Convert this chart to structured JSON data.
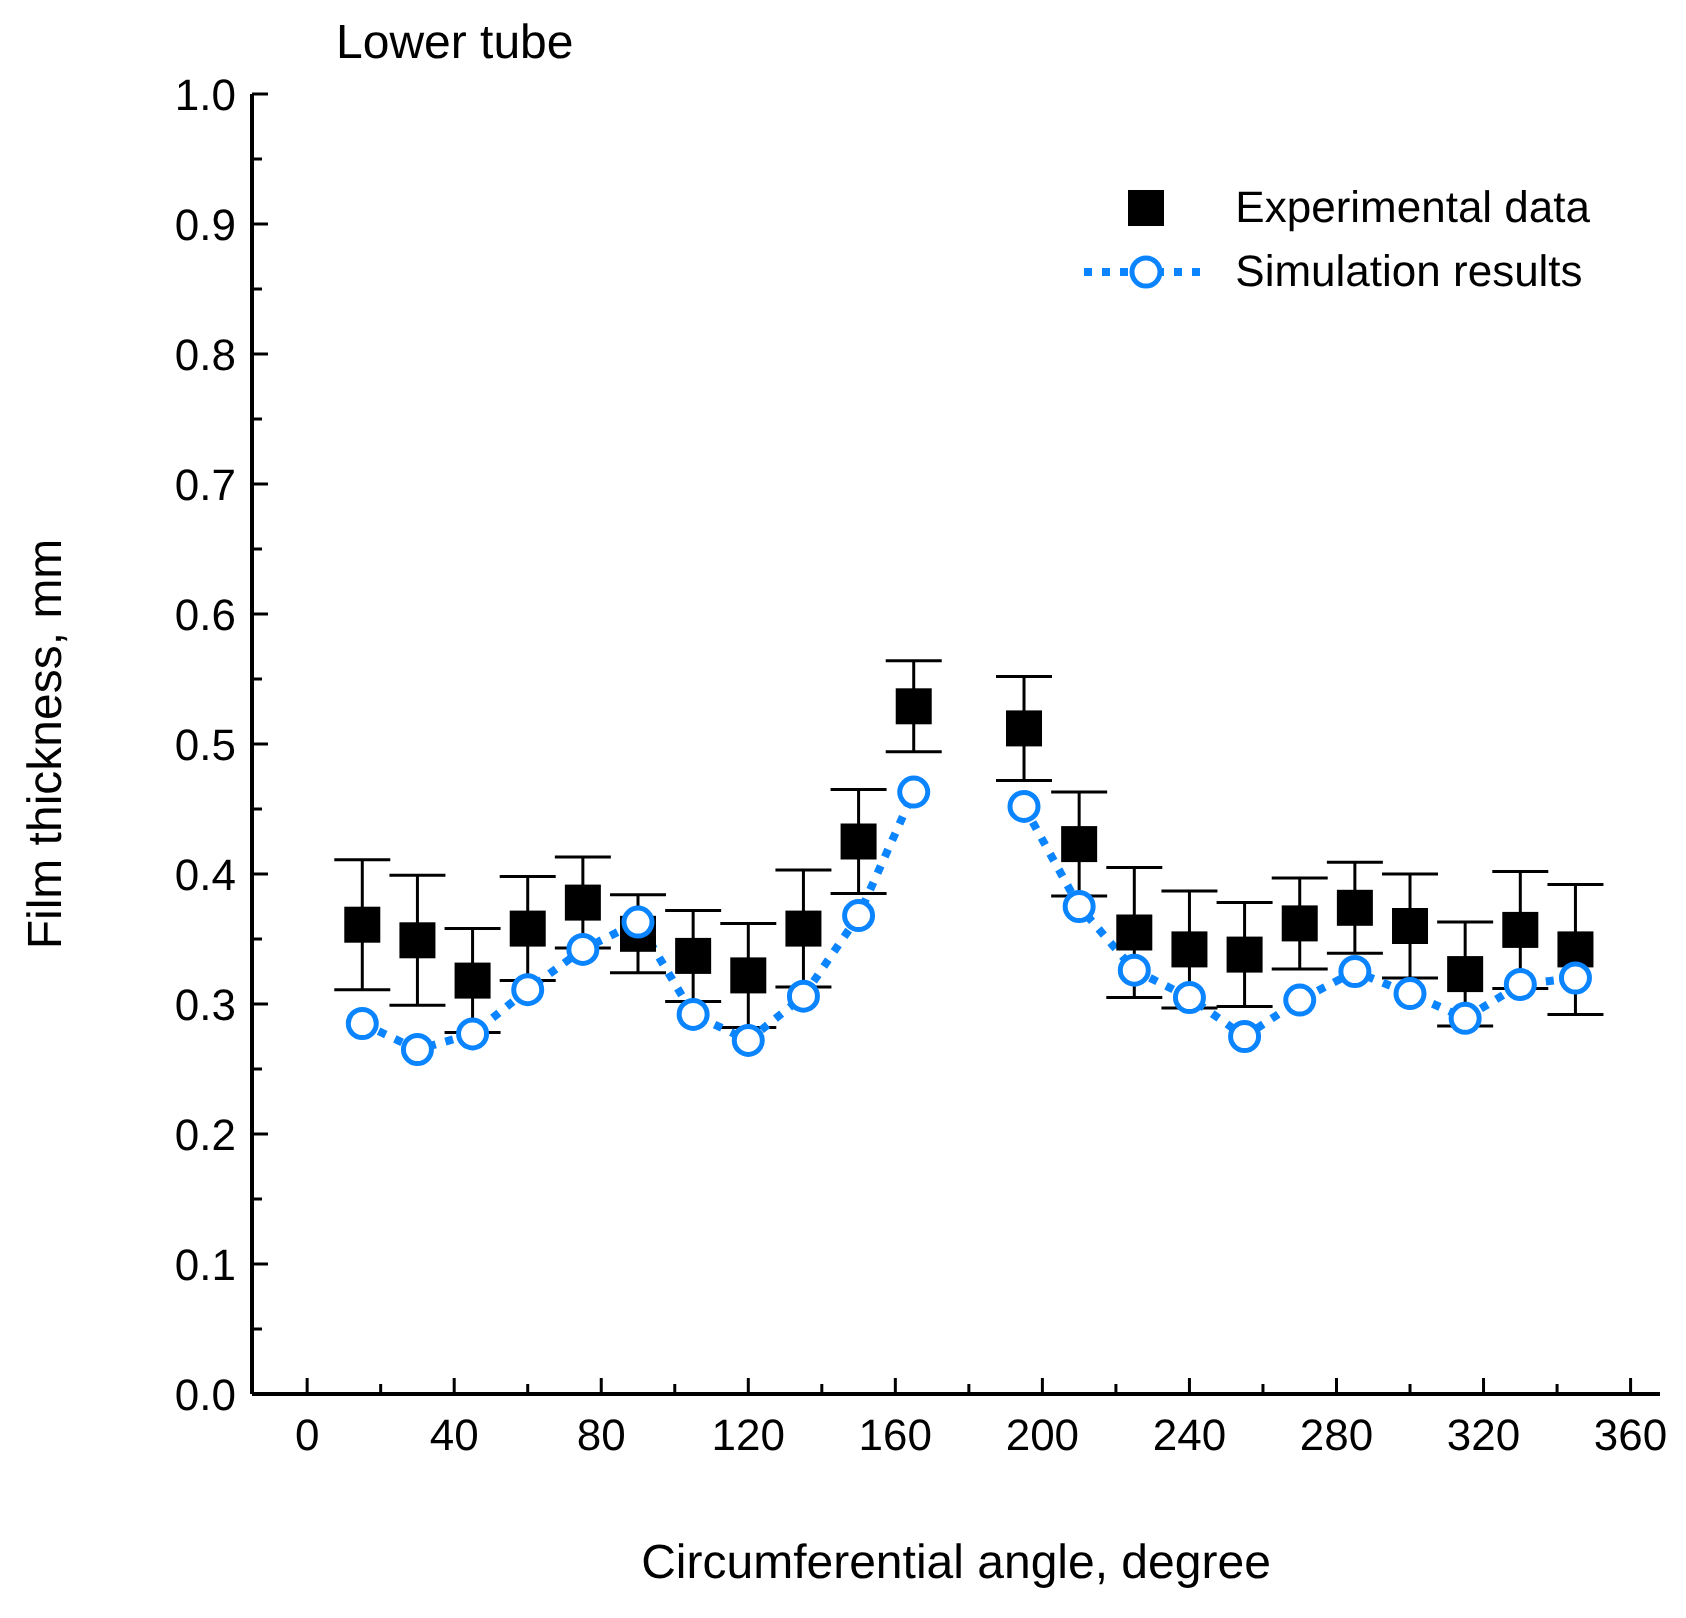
{
  "chart_data": {
    "type": "scatter",
    "title": "Lower tube",
    "xlabel": "Circumferential angle, degree",
    "ylabel": "Film thickness, mm",
    "x": [
      15,
      30,
      45,
      60,
      75,
      90,
      105,
      120,
      135,
      150,
      165,
      180,
      195,
      210,
      225,
      240,
      255,
      270,
      285,
      300,
      315,
      330,
      345
    ],
    "series": [
      {
        "name": "Experimental data",
        "color": "#000000",
        "marker": "square",
        "values": [
          0.361,
          0.349,
          0.318,
          0.358,
          0.378,
          0.354,
          0.337,
          0.322,
          0.358,
          0.425,
          0.529,
          null,
          0.512,
          0.423,
          0.355,
          0.342,
          0.338,
          0.362,
          0.374,
          0.36,
          0.323,
          0.357,
          0.342
        ],
        "errors": [
          0.05,
          0.05,
          0.04,
          0.04,
          0.035,
          0.03,
          0.035,
          0.04,
          0.045,
          0.04,
          0.035,
          null,
          0.04,
          0.04,
          0.05,
          0.045,
          0.04,
          0.035,
          0.035,
          0.04,
          0.04,
          0.045,
          0.05
        ]
      },
      {
        "name": "Simulation results",
        "type": "line",
        "color": "#0a84ff",
        "marker": "circle",
        "line_style": "dotted",
        "values": [
          0.285,
          0.265,
          0.277,
          0.311,
          0.342,
          0.363,
          0.292,
          0.272,
          0.306,
          0.368,
          0.463,
          null,
          0.452,
          0.375,
          0.326,
          0.305,
          0.275,
          0.303,
          0.325,
          0.308,
          0.289,
          0.315,
          0.32
        ]
      }
    ],
    "xlim": [
      -15,
      368
    ],
    "xticks": [
      0,
      {
        "value": 20,
        "label": null
      },
      40,
      {
        "value": 60,
        "label": null
      },
      80,
      {
        "value": 100,
        "label": null
      },
      120,
      {
        "value": 140,
        "label": null
      },
      160,
      {
        "value": 180,
        "label": null
      },
      200,
      {
        "value": 220,
        "label": null
      },
      240,
      {
        "value": 260,
        "label": null
      },
      280,
      {
        "value": 300,
        "label": null
      },
      320,
      {
        "value": 340,
        "label": null
      },
      360
    ],
    "ylim": [
      0,
      1
    ],
    "yticks": [
      {
        "value": 0,
        "label": "0.0"
      },
      {
        "value": 0.05,
        "label": null
      },
      {
        "value": 0.1,
        "label": "0.1"
      },
      {
        "value": 0.15,
        "label": null
      },
      {
        "value": 0.2,
        "label": "0.2"
      },
      {
        "value": 0.25,
        "label": null
      },
      {
        "value": 0.3,
        "label": "0.3"
      },
      {
        "value": 0.35,
        "label": null
      },
      {
        "value": 0.4,
        "label": "0.4"
      },
      {
        "value": 0.45,
        "label": null
      },
      {
        "value": 0.5,
        "label": "0.5"
      },
      {
        "value": 0.55,
        "label": null
      },
      {
        "value": 0.6,
        "label": "0.6"
      },
      {
        "value": 0.65,
        "label": null
      },
      {
        "value": 0.7,
        "label": "0.7"
      },
      {
        "value": 0.75,
        "label": null
      },
      {
        "value": 0.8,
        "label": "0.8"
      },
      {
        "value": 0.85,
        "label": null
      },
      {
        "value": 0.9,
        "label": "0.9"
      },
      {
        "value": 0.95,
        "label": null
      },
      {
        "value": 1,
        "label": "1.0"
      }
    ],
    "grid": false,
    "legend": "top right"
  }
}
